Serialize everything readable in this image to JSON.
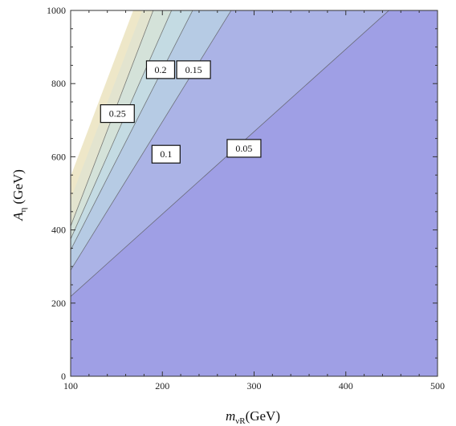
{
  "chart_data": {
    "type": "contour",
    "xlabel": {
      "main": "m",
      "sub": "νR",
      "unit": "(GeV)"
    },
    "ylabel": {
      "main": "A",
      "sub": "η",
      "unit": " (GeV)"
    },
    "xlim": [
      100,
      500
    ],
    "ylim": [
      0,
      1000
    ],
    "xticks": [
      100,
      200,
      300,
      400,
      500
    ],
    "yticks": [
      0,
      200,
      400,
      600,
      800,
      1000
    ],
    "contours": [
      {
        "level": "0.25",
        "line": [
          [
            100,
            410
          ],
          [
            190,
            1000
          ]
        ],
        "label_at": [
          151,
          718
        ]
      },
      {
        "level": "0.2",
        "line": [
          [
            100,
            375
          ],
          [
            210,
            1000
          ]
        ],
        "label_at": [
          198,
          838
        ]
      },
      {
        "level": "0.15",
        "line": [
          [
            100,
            345
          ],
          [
            233,
            1000
          ]
        ],
        "label_at": [
          234,
          838
        ]
      },
      {
        "level": "0.1",
        "line": [
          [
            100,
            290
          ],
          [
            275,
            1000
          ]
        ],
        "label_at": [
          204,
          607
        ]
      },
      {
        "level": "0.05",
        "line": [
          [
            100,
            218
          ],
          [
            447,
            1000
          ]
        ],
        "label_at": [
          289,
          623
        ]
      }
    ],
    "fill_colors": [
      "#9f9fe5",
      "#abb3e6",
      "#b6cbe4",
      "#c4dbe3",
      "#d4e2d9",
      "#e3e4cf",
      "#eee7c8",
      "#ffffff"
    ],
    "line_color": "#555555"
  }
}
